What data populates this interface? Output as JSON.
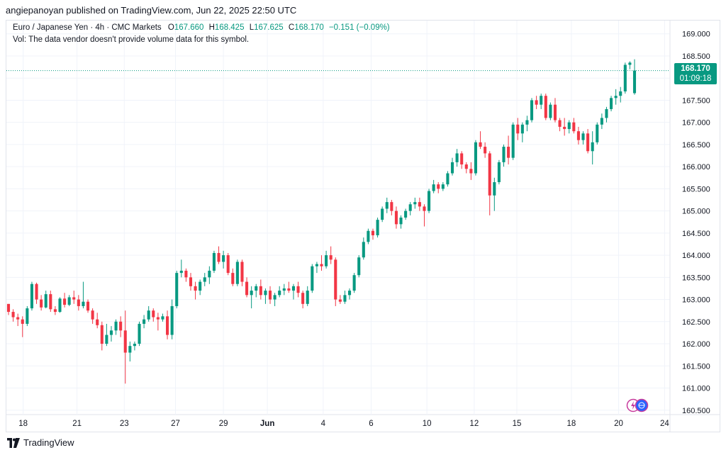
{
  "header": {
    "publisher_line": "angiepanoyan published on TradingView.com, Jun 22, 2025 22:50 UTC"
  },
  "legend": {
    "symbol": "Euro / Japanese Yen · 4h · CMC Markets",
    "o_label": "O",
    "o_value": "167.660",
    "h_label": "H",
    "h_value": "168.425",
    "l_label": "L",
    "l_value": "167.625",
    "c_label": "C",
    "c_value": "168.170",
    "change": "−0.151 (−0.09%)",
    "vol_note": "Vol: The data vendor doesn't provide volume data for this symbol."
  },
  "price_badge": {
    "price": "168.170",
    "countdown": "01:09:18"
  },
  "footer": {
    "brand": "TradingView"
  },
  "colors": {
    "up": "#089981",
    "down": "#f23645",
    "grid": "#f0f3fa",
    "axis_text": "#131722"
  },
  "icons": [
    "flash-icon",
    "globe-icon",
    "tradingview-logo-icon"
  ],
  "chart_data": {
    "type": "candlestick",
    "title": "Euro / Japanese Yen · 4h · CMC Markets",
    "ylim": [
      160.4,
      169.3
    ],
    "y_ticks": [
      "169.000",
      "168.500",
      "168.000",
      "167.500",
      "167.000",
      "166.500",
      "166.000",
      "165.500",
      "165.000",
      "164.500",
      "164.000",
      "163.500",
      "163.000",
      "162.500",
      "162.000",
      "161.500",
      "161.000",
      "160.500"
    ],
    "x_ticks": [
      "18",
      "21",
      "23",
      "27",
      "29",
      "Jun",
      "4",
      "6",
      "10",
      "12",
      "15",
      "18",
      "20",
      "24"
    ],
    "last_price": 168.17,
    "candles": [
      [
        162.9,
        162.9,
        162.65,
        162.72
      ],
      [
        162.72,
        162.78,
        162.5,
        162.6
      ],
      [
        162.6,
        162.68,
        162.4,
        162.55
      ],
      [
        162.55,
        162.62,
        162.15,
        162.45
      ],
      [
        162.45,
        162.85,
        162.4,
        162.8
      ],
      [
        162.8,
        163.4,
        162.75,
        163.35
      ],
      [
        163.35,
        163.38,
        162.9,
        163.0
      ],
      [
        163.0,
        163.1,
        162.75,
        162.82
      ],
      [
        162.82,
        163.2,
        162.8,
        163.12
      ],
      [
        163.12,
        163.2,
        162.72,
        162.78
      ],
      [
        162.78,
        162.85,
        162.65,
        162.72
      ],
      [
        162.72,
        163.05,
        162.7,
        163.02
      ],
      [
        163.02,
        163.15,
        162.82,
        162.88
      ],
      [
        162.88,
        163.1,
        162.85,
        163.05
      ],
      [
        163.05,
        163.2,
        162.9,
        163.0
      ],
      [
        163.0,
        163.1,
        162.75,
        162.85
      ],
      [
        162.85,
        163.4,
        162.8,
        162.95
      ],
      [
        162.95,
        163.0,
        162.7,
        162.75
      ],
      [
        162.75,
        162.8,
        162.45,
        162.55
      ],
      [
        162.55,
        162.7,
        162.35,
        162.42
      ],
      [
        162.42,
        162.5,
        161.85,
        162.0
      ],
      [
        162.0,
        162.45,
        161.95,
        162.2
      ],
      [
        162.2,
        162.4,
        162.05,
        162.3
      ],
      [
        162.3,
        162.55,
        162.2,
        162.5
      ],
      [
        162.5,
        162.62,
        162.15,
        162.3
      ],
      [
        162.3,
        162.75,
        161.1,
        161.8
      ],
      [
        161.8,
        162.05,
        161.6,
        161.95
      ],
      [
        161.95,
        162.05,
        161.85,
        162.0
      ],
      [
        162.0,
        162.5,
        161.95,
        162.45
      ],
      [
        162.45,
        162.65,
        162.35,
        162.55
      ],
      [
        162.55,
        162.85,
        162.5,
        162.75
      ],
      [
        162.75,
        162.8,
        162.5,
        162.6
      ],
      [
        162.6,
        162.7,
        162.3,
        162.55
      ],
      [
        162.55,
        162.68,
        162.5,
        162.62
      ],
      [
        162.62,
        162.75,
        162.1,
        162.2
      ],
      [
        162.2,
        163.0,
        162.1,
        162.85
      ],
      [
        162.85,
        163.65,
        162.8,
        163.6
      ],
      [
        163.6,
        163.9,
        163.5,
        163.65
      ],
      [
        163.65,
        163.7,
        163.4,
        163.5
      ],
      [
        163.5,
        163.6,
        163.2,
        163.3
      ],
      [
        163.3,
        163.4,
        163.0,
        163.2
      ],
      [
        163.2,
        163.45,
        163.1,
        163.4
      ],
      [
        163.4,
        163.6,
        163.3,
        163.5
      ],
      [
        163.5,
        163.75,
        163.35,
        163.65
      ],
      [
        163.65,
        164.1,
        163.6,
        164.05
      ],
      [
        164.05,
        164.2,
        163.8,
        163.85
      ],
      [
        163.85,
        164.1,
        163.7,
        164.0
      ],
      [
        164.0,
        164.05,
        163.55,
        163.6
      ],
      [
        163.6,
        163.7,
        163.3,
        163.35
      ],
      [
        163.35,
        163.9,
        163.3,
        163.85
      ],
      [
        163.85,
        163.9,
        163.3,
        163.4
      ],
      [
        163.4,
        163.5,
        163.05,
        163.1
      ],
      [
        163.1,
        163.3,
        162.8,
        163.2
      ],
      [
        163.2,
        163.35,
        163.05,
        163.3
      ],
      [
        163.3,
        163.45,
        163.0,
        163.1
      ],
      [
        163.1,
        163.25,
        162.9,
        163.2
      ],
      [
        163.2,
        163.3,
        162.9,
        163.0
      ],
      [
        163.0,
        163.15,
        162.85,
        163.1
      ],
      [
        163.1,
        163.3,
        163.05,
        163.2
      ],
      [
        163.2,
        163.35,
        163.1,
        163.25
      ],
      [
        163.25,
        163.4,
        163.15,
        163.2
      ],
      [
        163.2,
        163.35,
        163.0,
        163.3
      ],
      [
        163.3,
        163.4,
        163.05,
        163.15
      ],
      [
        163.15,
        163.2,
        162.8,
        162.9
      ],
      [
        162.9,
        163.3,
        162.85,
        163.2
      ],
      [
        163.2,
        163.8,
        163.15,
        163.75
      ],
      [
        163.75,
        163.85,
        163.6,
        163.8
      ],
      [
        163.8,
        164.0,
        163.65,
        163.75
      ],
      [
        163.75,
        164.1,
        163.7,
        164.0
      ],
      [
        164.0,
        164.2,
        163.8,
        163.9
      ],
      [
        163.9,
        163.95,
        162.85,
        163.0
      ],
      [
        163.0,
        163.1,
        162.9,
        162.95
      ],
      [
        162.95,
        163.2,
        162.9,
        163.1
      ],
      [
        163.1,
        163.25,
        163.0,
        163.2
      ],
      [
        163.2,
        163.6,
        163.15,
        163.55
      ],
      [
        163.55,
        164.0,
        163.5,
        163.95
      ],
      [
        163.95,
        164.4,
        163.9,
        164.3
      ],
      [
        164.3,
        164.6,
        164.25,
        164.55
      ],
      [
        164.55,
        164.6,
        164.35,
        164.45
      ],
      [
        164.45,
        164.85,
        164.4,
        164.8
      ],
      [
        164.8,
        165.1,
        164.75,
        165.05
      ],
      [
        165.05,
        165.3,
        164.95,
        165.2
      ],
      [
        165.2,
        165.25,
        164.9,
        165.0
      ],
      [
        165.0,
        165.1,
        164.6,
        164.7
      ],
      [
        164.7,
        164.9,
        164.6,
        164.85
      ],
      [
        164.85,
        165.05,
        164.8,
        165.0
      ],
      [
        165.0,
        165.2,
        164.9,
        165.15
      ],
      [
        165.15,
        165.3,
        165.05,
        165.2
      ],
      [
        165.2,
        165.3,
        165.0,
        165.1
      ],
      [
        165.1,
        165.15,
        164.65,
        165.0
      ],
      [
        165.0,
        165.5,
        164.95,
        165.45
      ],
      [
        165.45,
        165.7,
        165.4,
        165.6
      ],
      [
        165.6,
        165.65,
        165.4,
        165.5
      ],
      [
        165.5,
        165.65,
        165.45,
        165.6
      ],
      [
        165.6,
        165.9,
        165.55,
        165.85
      ],
      [
        165.85,
        166.2,
        165.8,
        166.1
      ],
      [
        166.1,
        166.4,
        166.0,
        166.3
      ],
      [
        166.3,
        166.35,
        165.95,
        166.05
      ],
      [
        166.05,
        166.1,
        165.85,
        165.95
      ],
      [
        165.95,
        166.1,
        165.7,
        165.85
      ],
      [
        165.85,
        166.6,
        165.8,
        166.55
      ],
      [
        166.55,
        166.8,
        166.4,
        166.45
      ],
      [
        166.45,
        166.55,
        166.2,
        166.3
      ],
      [
        166.3,
        166.35,
        164.9,
        165.35
      ],
      [
        165.35,
        165.75,
        165.0,
        165.65
      ],
      [
        165.65,
        166.15,
        165.6,
        166.1
      ],
      [
        166.1,
        166.5,
        166.0,
        166.45
      ],
      [
        166.45,
        166.7,
        166.05,
        166.2
      ],
      [
        166.2,
        167.0,
        166.15,
        166.95
      ],
      [
        166.95,
        167.1,
        166.6,
        166.75
      ],
      [
        166.75,
        167.0,
        166.55,
        166.95
      ],
      [
        166.95,
        167.15,
        166.8,
        167.05
      ],
      [
        167.05,
        167.55,
        167.0,
        167.5
      ],
      [
        167.5,
        167.6,
        167.3,
        167.4
      ],
      [
        167.4,
        167.65,
        167.3,
        167.6
      ],
      [
        167.6,
        167.65,
        167.05,
        167.1
      ],
      [
        167.1,
        167.45,
        167.05,
        167.4
      ],
      [
        167.4,
        167.55,
        167.0,
        167.05
      ],
      [
        167.05,
        167.1,
        166.8,
        166.9
      ],
      [
        166.9,
        167.1,
        166.7,
        166.85
      ],
      [
        166.85,
        167.05,
        166.75,
        167.0
      ],
      [
        167.0,
        167.1,
        166.75,
        166.8
      ],
      [
        166.8,
        166.9,
        166.5,
        166.6
      ],
      [
        166.6,
        166.8,
        166.5,
        166.75
      ],
      [
        166.75,
        166.85,
        166.3,
        166.35
      ],
      [
        166.35,
        166.8,
        166.05,
        166.55
      ],
      [
        166.55,
        167.0,
        166.5,
        166.95
      ],
      [
        166.95,
        167.2,
        166.85,
        167.1
      ],
      [
        167.1,
        167.35,
        167.0,
        167.3
      ],
      [
        167.3,
        167.6,
        167.25,
        167.55
      ],
      [
        167.55,
        167.75,
        167.4,
        167.6
      ],
      [
        167.6,
        167.8,
        167.45,
        167.7
      ],
      [
        167.7,
        168.35,
        167.65,
        168.3
      ],
      [
        168.3,
        168.38,
        168.2,
        168.35
      ],
      [
        167.66,
        168.425,
        167.625,
        168.17
      ]
    ]
  }
}
